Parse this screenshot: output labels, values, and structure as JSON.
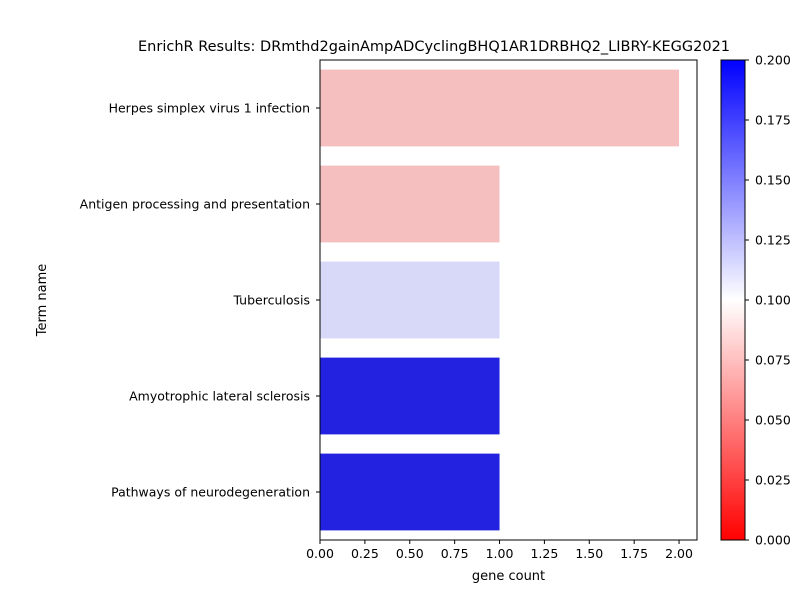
{
  "chart_data": {
    "type": "bar",
    "orientation": "horizontal",
    "title": "EnrichR Results: DRmthd2gainAmpADCyclingBHQ1AR1DRBHQ2_LIBRY-KEGG2021",
    "xlabel": "gene count",
    "ylabel": "Term name",
    "xlim": [
      0,
      2.1
    ],
    "xticks": [
      "0.00",
      "0.25",
      "0.50",
      "0.75",
      "1.00",
      "1.25",
      "1.50",
      "1.75",
      "2.00"
    ],
    "categories": [
      "Herpes simplex virus 1 infection",
      "Antigen processing and presentation",
      "Tuberculosis",
      "Amyotrophic lateral sclerosis",
      "Pathways of neurodegeneration"
    ],
    "values": [
      2,
      1,
      1,
      1,
      1
    ],
    "bar_colors": [
      "#f5bfbf",
      "#f5bfbf",
      "#d8d8f8",
      "#2222e0",
      "#2222e0"
    ],
    "grid": false,
    "colorbar": {
      "range": [
        0,
        0.2
      ],
      "ticks": [
        "0.000",
        "0.025",
        "0.050",
        "0.075",
        "0.100",
        "0.125",
        "0.150",
        "0.175",
        "0.200"
      ],
      "colormap": [
        "#ff0000",
        "#ffffff",
        "#0000ff"
      ]
    }
  }
}
